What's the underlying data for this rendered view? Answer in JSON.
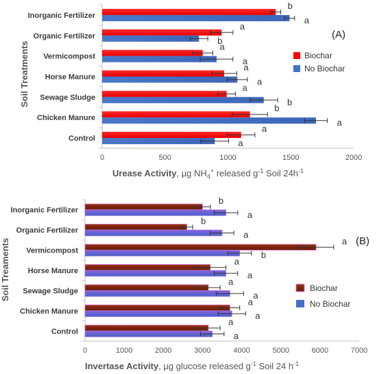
{
  "chart_data": [
    {
      "type": "bar",
      "orientation": "horizontal",
      "panel_label": "(A)",
      "categories": [
        "Inorganic Fertilizer",
        "Organic Fertilizer",
        "Vermicompost",
        "Horse Manure",
        "Sewage Sludge",
        "Chicken Manure",
        "Control"
      ],
      "series": [
        {
          "name": "Biochar",
          "color": "#ff0000",
          "values": [
            1380,
            950,
            800,
            970,
            990,
            1175,
            1105
          ],
          "errors": [
            40,
            90,
            80,
            100,
            70,
            140,
            110
          ],
          "letters": [
            "b",
            "a",
            "a",
            "a",
            "a",
            "b",
            "a"
          ]
        },
        {
          "name": "No Biochar",
          "color": "#4472c4",
          "values": [
            1490,
            770,
            910,
            1075,
            1285,
            1700,
            895
          ],
          "errors": [
            40,
            70,
            130,
            80,
            110,
            90,
            110
          ],
          "letters": [
            "a",
            "b",
            "a",
            "a",
            "b",
            "a",
            "a"
          ]
        }
      ],
      "xlim": [
        0,
        2000
      ],
      "xticks": [
        "0",
        "500",
        "1000",
        "1500",
        "2000"
      ],
      "xlabel_bold": "Urease Activity",
      "xlabel_rest": ", µg NH",
      "xlabel_sub": "4",
      "xlabel_sup": "+",
      "xlabel_rest2": " released g",
      "xlabel_sup2": "-1",
      "xlabel_rest3": " Soil 24h",
      "xlabel_sup3": "-1",
      "ylabel": "Soil Treatments",
      "legend": [
        "Biochar",
        "No Biochar"
      ],
      "legend_position": "right"
    },
    {
      "type": "bar",
      "orientation": "horizontal",
      "panel_label": "(B)",
      "categories": [
        "Inorganic Fertilizer",
        "Organic Fertilizer",
        "Vermicompost",
        "Horse Manure",
        "Sewage Sludge",
        "Chicken Manure",
        "Control"
      ],
      "series": [
        {
          "name": "Biochar",
          "color": "#8b2a12",
          "values": [
            3000,
            2600,
            5900,
            3200,
            3150,
            3700,
            3150
          ],
          "errors": [
            200,
            150,
            450,
            400,
            300,
            250,
            300
          ],
          "letters": [
            "b",
            "b",
            "a",
            "a",
            "a",
            "a",
            "a"
          ]
        },
        {
          "name": "No Biochar",
          "color": "#4472c4",
          "values": [
            3600,
            3500,
            3950,
            3600,
            3700,
            3750,
            3250
          ],
          "errors": [
            300,
            300,
            300,
            300,
            350,
            350,
            300
          ],
          "letters": [
            "a",
            "a",
            "b",
            "a",
            "a",
            "a",
            "a"
          ]
        }
      ],
      "xlim": [
        0,
        7000
      ],
      "xticks": [
        "0",
        "1000",
        "2000",
        "3000",
        "4000",
        "5000",
        "6000",
        "7000"
      ],
      "xlabel_bold": "Invertase Activity",
      "xlabel_rest": ", µg glucose released g",
      "xlabel_sup": "-1",
      "xlabel_rest2": " Soil 24 h",
      "xlabel_sup2": "-1",
      "ylabel": "Soil Treaments",
      "legend": [
        "Biochar",
        "No Biochar"
      ],
      "legend_position": "right"
    }
  ]
}
